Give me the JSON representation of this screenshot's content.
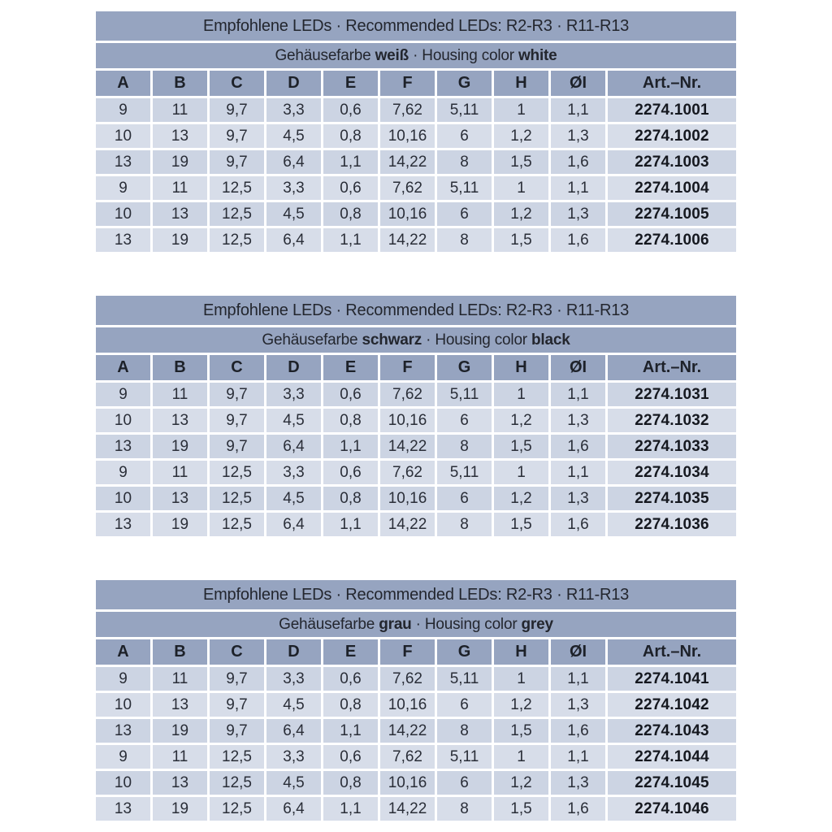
{
  "page": {
    "background": "#ffffff"
  },
  "colors": {
    "band": "#96a4c0",
    "row_odd": "#ccd4e3",
    "row_even": "#d7dde9",
    "text": "#23262e"
  },
  "tables": [
    {
      "id": "white",
      "title": "Empfohlene LEDs · Recommended LEDs: R2-R3 · R11-R13",
      "subtitle_parts": [
        {
          "text": "Gehäusefarbe ",
          "bold": false
        },
        {
          "text": "weiß",
          "bold": true
        },
        {
          "text": " · Housing color ",
          "bold": false
        },
        {
          "text": "white",
          "bold": true
        }
      ],
      "columns": [
        "A",
        "B",
        "C",
        "D",
        "E",
        "F",
        "G",
        "H",
        "ØI",
        "Art.–Nr."
      ],
      "rows": [
        [
          "9",
          "11",
          "9,7",
          "3,3",
          "0,6",
          "7,62",
          "5,11",
          "1",
          "1,1",
          "2274.1001"
        ],
        [
          "10",
          "13",
          "9,7",
          "4,5",
          "0,8",
          "10,16",
          "6",
          "1,2",
          "1,3",
          "2274.1002"
        ],
        [
          "13",
          "19",
          "9,7",
          "6,4",
          "1,1",
          "14,22",
          "8",
          "1,5",
          "1,6",
          "2274.1003"
        ],
        [
          "9",
          "11",
          "12,5",
          "3,3",
          "0,6",
          "7,62",
          "5,11",
          "1",
          "1,1",
          "2274.1004"
        ],
        [
          "10",
          "13",
          "12,5",
          "4,5",
          "0,8",
          "10,16",
          "6",
          "1,2",
          "1,3",
          "2274.1005"
        ],
        [
          "13",
          "19",
          "12,5",
          "6,4",
          "1,1",
          "14,22",
          "8",
          "1,5",
          "1,6",
          "2274.1006"
        ]
      ]
    },
    {
      "id": "black",
      "title": "Empfohlene LEDs · Recommended LEDs: R2-R3 · R11-R13",
      "subtitle_parts": [
        {
          "text": "Gehäusefarbe ",
          "bold": false
        },
        {
          "text": "schwarz",
          "bold": true
        },
        {
          "text": " · Housing color ",
          "bold": false
        },
        {
          "text": "black",
          "bold": true
        }
      ],
      "columns": [
        "A",
        "B",
        "C",
        "D",
        "E",
        "F",
        "G",
        "H",
        "ØI",
        "Art.–Nr."
      ],
      "rows": [
        [
          "9",
          "11",
          "9,7",
          "3,3",
          "0,6",
          "7,62",
          "5,11",
          "1",
          "1,1",
          "2274.1031"
        ],
        [
          "10",
          "13",
          "9,7",
          "4,5",
          "0,8",
          "10,16",
          "6",
          "1,2",
          "1,3",
          "2274.1032"
        ],
        [
          "13",
          "19",
          "9,7",
          "6,4",
          "1,1",
          "14,22",
          "8",
          "1,5",
          "1,6",
          "2274.1033"
        ],
        [
          "9",
          "11",
          "12,5",
          "3,3",
          "0,6",
          "7,62",
          "5,11",
          "1",
          "1,1",
          "2274.1034"
        ],
        [
          "10",
          "13",
          "12,5",
          "4,5",
          "0,8",
          "10,16",
          "6",
          "1,2",
          "1,3",
          "2274.1035"
        ],
        [
          "13",
          "19",
          "12,5",
          "6,4",
          "1,1",
          "14,22",
          "8",
          "1,5",
          "1,6",
          "2274.1036"
        ]
      ]
    },
    {
      "id": "grey",
      "title": "Empfohlene LEDs · Recommended LEDs: R2-R3 · R11-R13",
      "subtitle_parts": [
        {
          "text": "Gehäusefarbe ",
          "bold": false
        },
        {
          "text": "grau",
          "bold": true
        },
        {
          "text": " · Housing color ",
          "bold": false
        },
        {
          "text": "grey",
          "bold": true
        }
      ],
      "columns": [
        "A",
        "B",
        "C",
        "D",
        "E",
        "F",
        "G",
        "H",
        "ØI",
        "Art.–Nr."
      ],
      "rows": [
        [
          "9",
          "11",
          "9,7",
          "3,3",
          "0,6",
          "7,62",
          "5,11",
          "1",
          "1,1",
          "2274.1041"
        ],
        [
          "10",
          "13",
          "9,7",
          "4,5",
          "0,8",
          "10,16",
          "6",
          "1,2",
          "1,3",
          "2274.1042"
        ],
        [
          "13",
          "19",
          "9,7",
          "6,4",
          "1,1",
          "14,22",
          "8",
          "1,5",
          "1,6",
          "2274.1043"
        ],
        [
          "9",
          "11",
          "12,5",
          "3,3",
          "0,6",
          "7,62",
          "5,11",
          "1",
          "1,1",
          "2274.1044"
        ],
        [
          "10",
          "13",
          "12,5",
          "4,5",
          "0,8",
          "10,16",
          "6",
          "1,2",
          "1,3",
          "2274.1045"
        ],
        [
          "13",
          "19",
          "12,5",
          "6,4",
          "1,1",
          "14,22",
          "8",
          "1,5",
          "1,6",
          "2274.1046"
        ]
      ]
    }
  ]
}
